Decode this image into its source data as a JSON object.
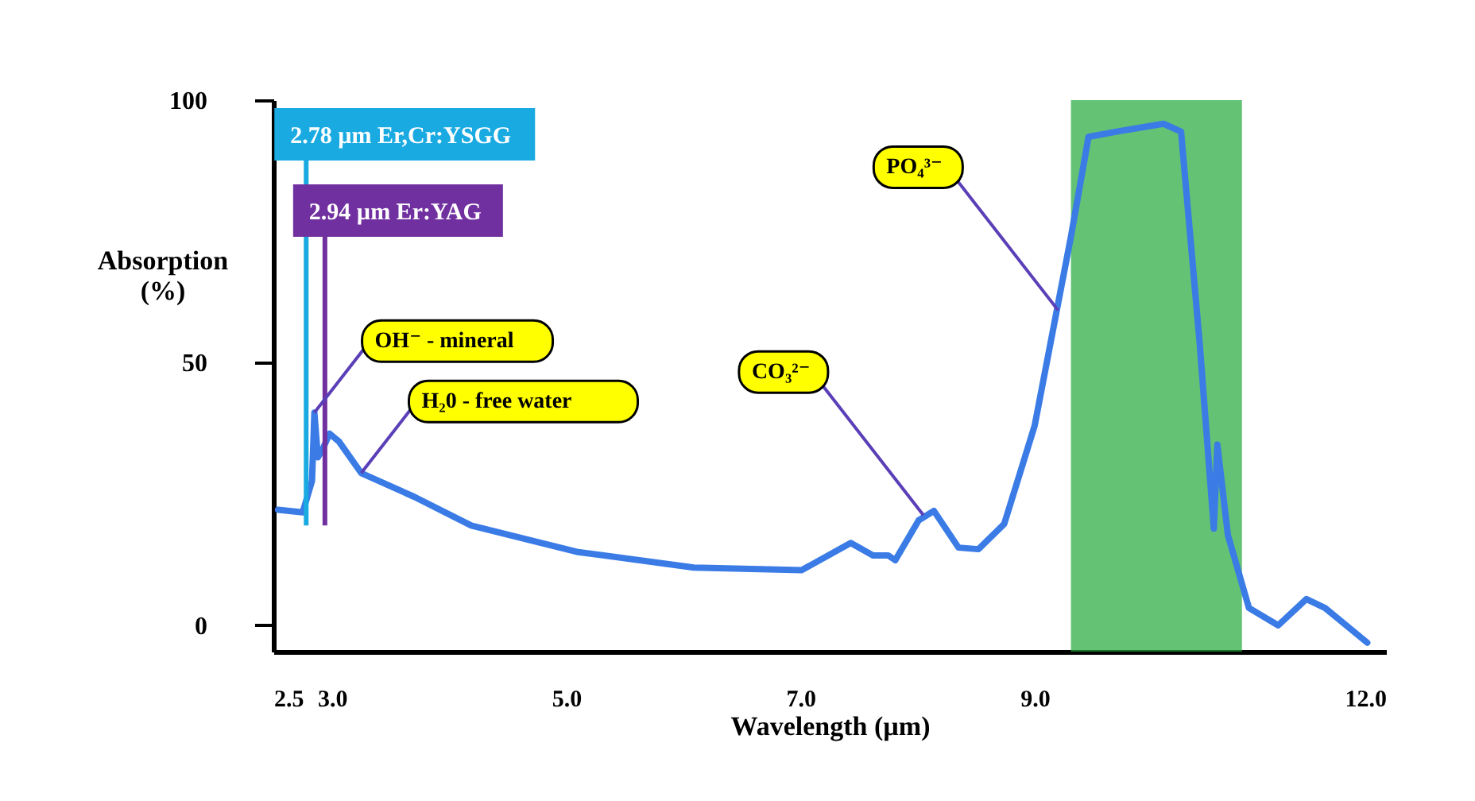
{
  "chart_data": {
    "type": "line",
    "xlabel": "Wavelength (µm)",
    "ylabel": "Absorption (%)",
    "x": [
      2.54,
      2.75,
      2.83,
      2.85,
      2.88,
      2.93,
      2.98,
      3.06,
      3.25,
      3.7,
      4.19,
      5.09,
      6.09,
      7.01,
      7.43,
      7.62,
      7.75,
      7.81,
      8.01,
      8.14,
      8.35,
      8.52,
      8.74,
      9.0,
      9.31,
      9.46,
      9.7,
      10.1,
      10.25,
      10.41,
      10.53,
      10.56,
      10.65,
      10.83,
      11.08,
      11.32,
      11.48,
      11.84
    ],
    "series": [
      {
        "color": "#3a7be6",
        "values": [
          22,
          21.5,
          27.5,
          40.5,
          32,
          34,
          36.5,
          35,
          29,
          24.5,
          19,
          14,
          11,
          10.5,
          15.7,
          13.3,
          13.3,
          12.4,
          20,
          21.8,
          14.8,
          14.5,
          19.3,
          38,
          74,
          93,
          94,
          95.5,
          94,
          53.5,
          18.4,
          34.4,
          17.2,
          3.3,
          0,
          5,
          3.3,
          -3.3
        ]
      }
    ],
    "xlim": [
      2.5,
      12
    ],
    "xticks": [
      {
        "value": 2.5,
        "label": "2.5"
      },
      {
        "value": 3,
        "label": "3.0"
      },
      {
        "value": 5,
        "label": "5.0"
      },
      {
        "value": 7,
        "label": "7.0"
      },
      {
        "value": 9,
        "label": "9.0"
      },
      {
        "value": 12,
        "label": "12.0"
      }
    ],
    "ylim": [
      -5,
      100
    ],
    "yticks": [
      0,
      50,
      100
    ],
    "ref_lines": [
      {
        "axis": "x",
        "value": 2.78,
        "label": "2.78 µm Er,Cr:YSGG",
        "color": "#1aaae2"
      },
      {
        "axis": "x",
        "value": 2.94,
        "label": "2.94 µm Er:YAG",
        "color": "#7030a0"
      }
    ],
    "bands": [
      {
        "axis": "x",
        "from": 9.31,
        "to": 10.77,
        "color": "#22a83a"
      }
    ],
    "annotations": [
      {
        "text": "OH⁻ - mineral",
        "x": 2.85,
        "y": 40.5
      },
      {
        "text": "H₂0 - free water",
        "x": 3.25,
        "y": 29
      },
      {
        "text": "CO₃²⁻",
        "x": 8.05,
        "y": 21
      },
      {
        "text": "PO₄³⁻",
        "x": 9.2,
        "y": 60
      }
    ],
    "grid": false,
    "marker": "none",
    "line_style": "solid"
  }
}
